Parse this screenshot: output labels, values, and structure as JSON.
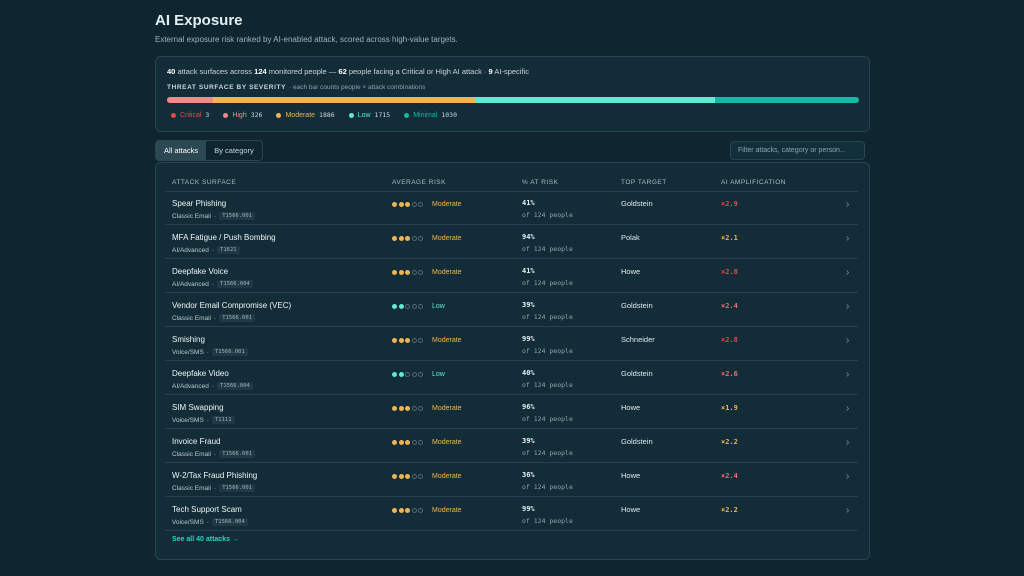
{
  "header": {
    "title": "AI Exposure",
    "subtitle": "External exposure risk ranked by AI-enabled attack, scored across high-value targets."
  },
  "summary": {
    "stats": [
      {
        "value": 40,
        "text": "attack surfaces across"
      },
      {
        "value": 124,
        "text": "monitored people —"
      },
      {
        "value": 62,
        "text": "people facing a Critical or High AI attack ·"
      },
      {
        "value": 9,
        "text": "AI-specific"
      }
    ],
    "severity": {
      "label": "THREAT SURFACE BY SEVERITY",
      "note": "· each bar counts people × attack combinations",
      "levels": [
        {
          "name": "Critical",
          "count": 3,
          "color": "#e5484d"
        },
        {
          "name": "High",
          "count": 326,
          "color": "#f08a8a"
        },
        {
          "name": "Moderate",
          "count": 1886,
          "color": "#f2b450"
        },
        {
          "name": "Low",
          "count": 1715,
          "color": "#5eead4"
        },
        {
          "name": "Minimal",
          "count": 1030,
          "color": "#14b8a6"
        }
      ]
    }
  },
  "tabs": [
    "All attacks",
    "By category"
  ],
  "filter": {
    "placeholder": "Filter attacks, category or person..."
  },
  "table": {
    "columns": [
      "ATTACK SURFACE",
      "AVERAGE RISK",
      "% AT RISK",
      "TOP TARGET",
      "AI AMPLIFICATION"
    ],
    "rows": [
      {
        "name": "Spear Phishing",
        "category": "Classic Email",
        "code": "T1566.001",
        "risk": "Moderate",
        "risk_dots": 3,
        "risk_color": "#f2b450",
        "pct": "41%",
        "of": "of 124 people",
        "target": "Goldstein",
        "amp": "×2.9",
        "amp_color": "#e5484d"
      },
      {
        "name": "MFA Fatigue / Push Bombing",
        "category": "AI/Advanced",
        "code": "T1621",
        "risk": "Moderate",
        "risk_dots": 3,
        "risk_color": "#f2b450",
        "pct": "94%",
        "of": "of 124 people",
        "target": "Polak",
        "amp": "×2.1",
        "amp_color": "#f2b450"
      },
      {
        "name": "Deepfake Voice",
        "category": "AI/Advanced",
        "code": "T1566.004",
        "risk": "Moderate",
        "risk_dots": 3,
        "risk_color": "#f2b450",
        "pct": "41%",
        "of": "of 124 people",
        "target": "Howe",
        "amp": "×2.8",
        "amp_color": "#e5484d"
      },
      {
        "name": "Vendor Email Compromise (VEC)",
        "category": "Classic Email",
        "code": "T1566.001",
        "risk": "Low",
        "risk_dots": 2,
        "risk_color": "#5eead4",
        "pct": "39%",
        "of": "of 124 people",
        "target": "Goldstein",
        "amp": "×2.4",
        "amp_color": "#f07070"
      },
      {
        "name": "Smishing",
        "category": "Voice/SMS",
        "code": "T1566.001",
        "risk": "Moderate",
        "risk_dots": 3,
        "risk_color": "#f2b450",
        "pct": "99%",
        "of": "of 124 people",
        "target": "Schneider",
        "amp": "×2.8",
        "amp_color": "#e5484d"
      },
      {
        "name": "Deepfake Video",
        "category": "AI/Advanced",
        "code": "T1566.004",
        "risk": "Low",
        "risk_dots": 2,
        "risk_color": "#5eead4",
        "pct": "40%",
        "of": "of 124 people",
        "target": "Goldstein",
        "amp": "×2.6",
        "amp_color": "#f07070"
      },
      {
        "name": "SIM Swapping",
        "category": "Voice/SMS",
        "code": "T1111",
        "risk": "Moderate",
        "risk_dots": 3,
        "risk_color": "#f2b450",
        "pct": "96%",
        "of": "of 124 people",
        "target": "Howe",
        "amp": "×1.9",
        "amp_color": "#f2b450"
      },
      {
        "name": "Invoice Fraud",
        "category": "Classic Email",
        "code": "T1566.001",
        "risk": "Moderate",
        "risk_dots": 3,
        "risk_color": "#f2b450",
        "pct": "39%",
        "of": "of 124 people",
        "target": "Goldstein",
        "amp": "×2.2",
        "amp_color": "#f2b450"
      },
      {
        "name": "W-2/Tax Fraud Phishing",
        "category": "Classic Email",
        "code": "T1566.001",
        "risk": "Moderate",
        "risk_dots": 3,
        "risk_color": "#f2b450",
        "pct": "36%",
        "of": "of 124 people",
        "target": "Howe",
        "amp": "×2.4",
        "amp_color": "#f07070"
      },
      {
        "name": "Tech Support Scam",
        "category": "Voice/SMS",
        "code": "T1566.004",
        "risk": "Moderate",
        "risk_dots": 3,
        "risk_color": "#f2b450",
        "pct": "99%",
        "of": "of 124 people",
        "target": "Howe",
        "amp": "×2.2",
        "amp_color": "#f2b450"
      }
    ],
    "footer": "See all 40 attacks →"
  }
}
